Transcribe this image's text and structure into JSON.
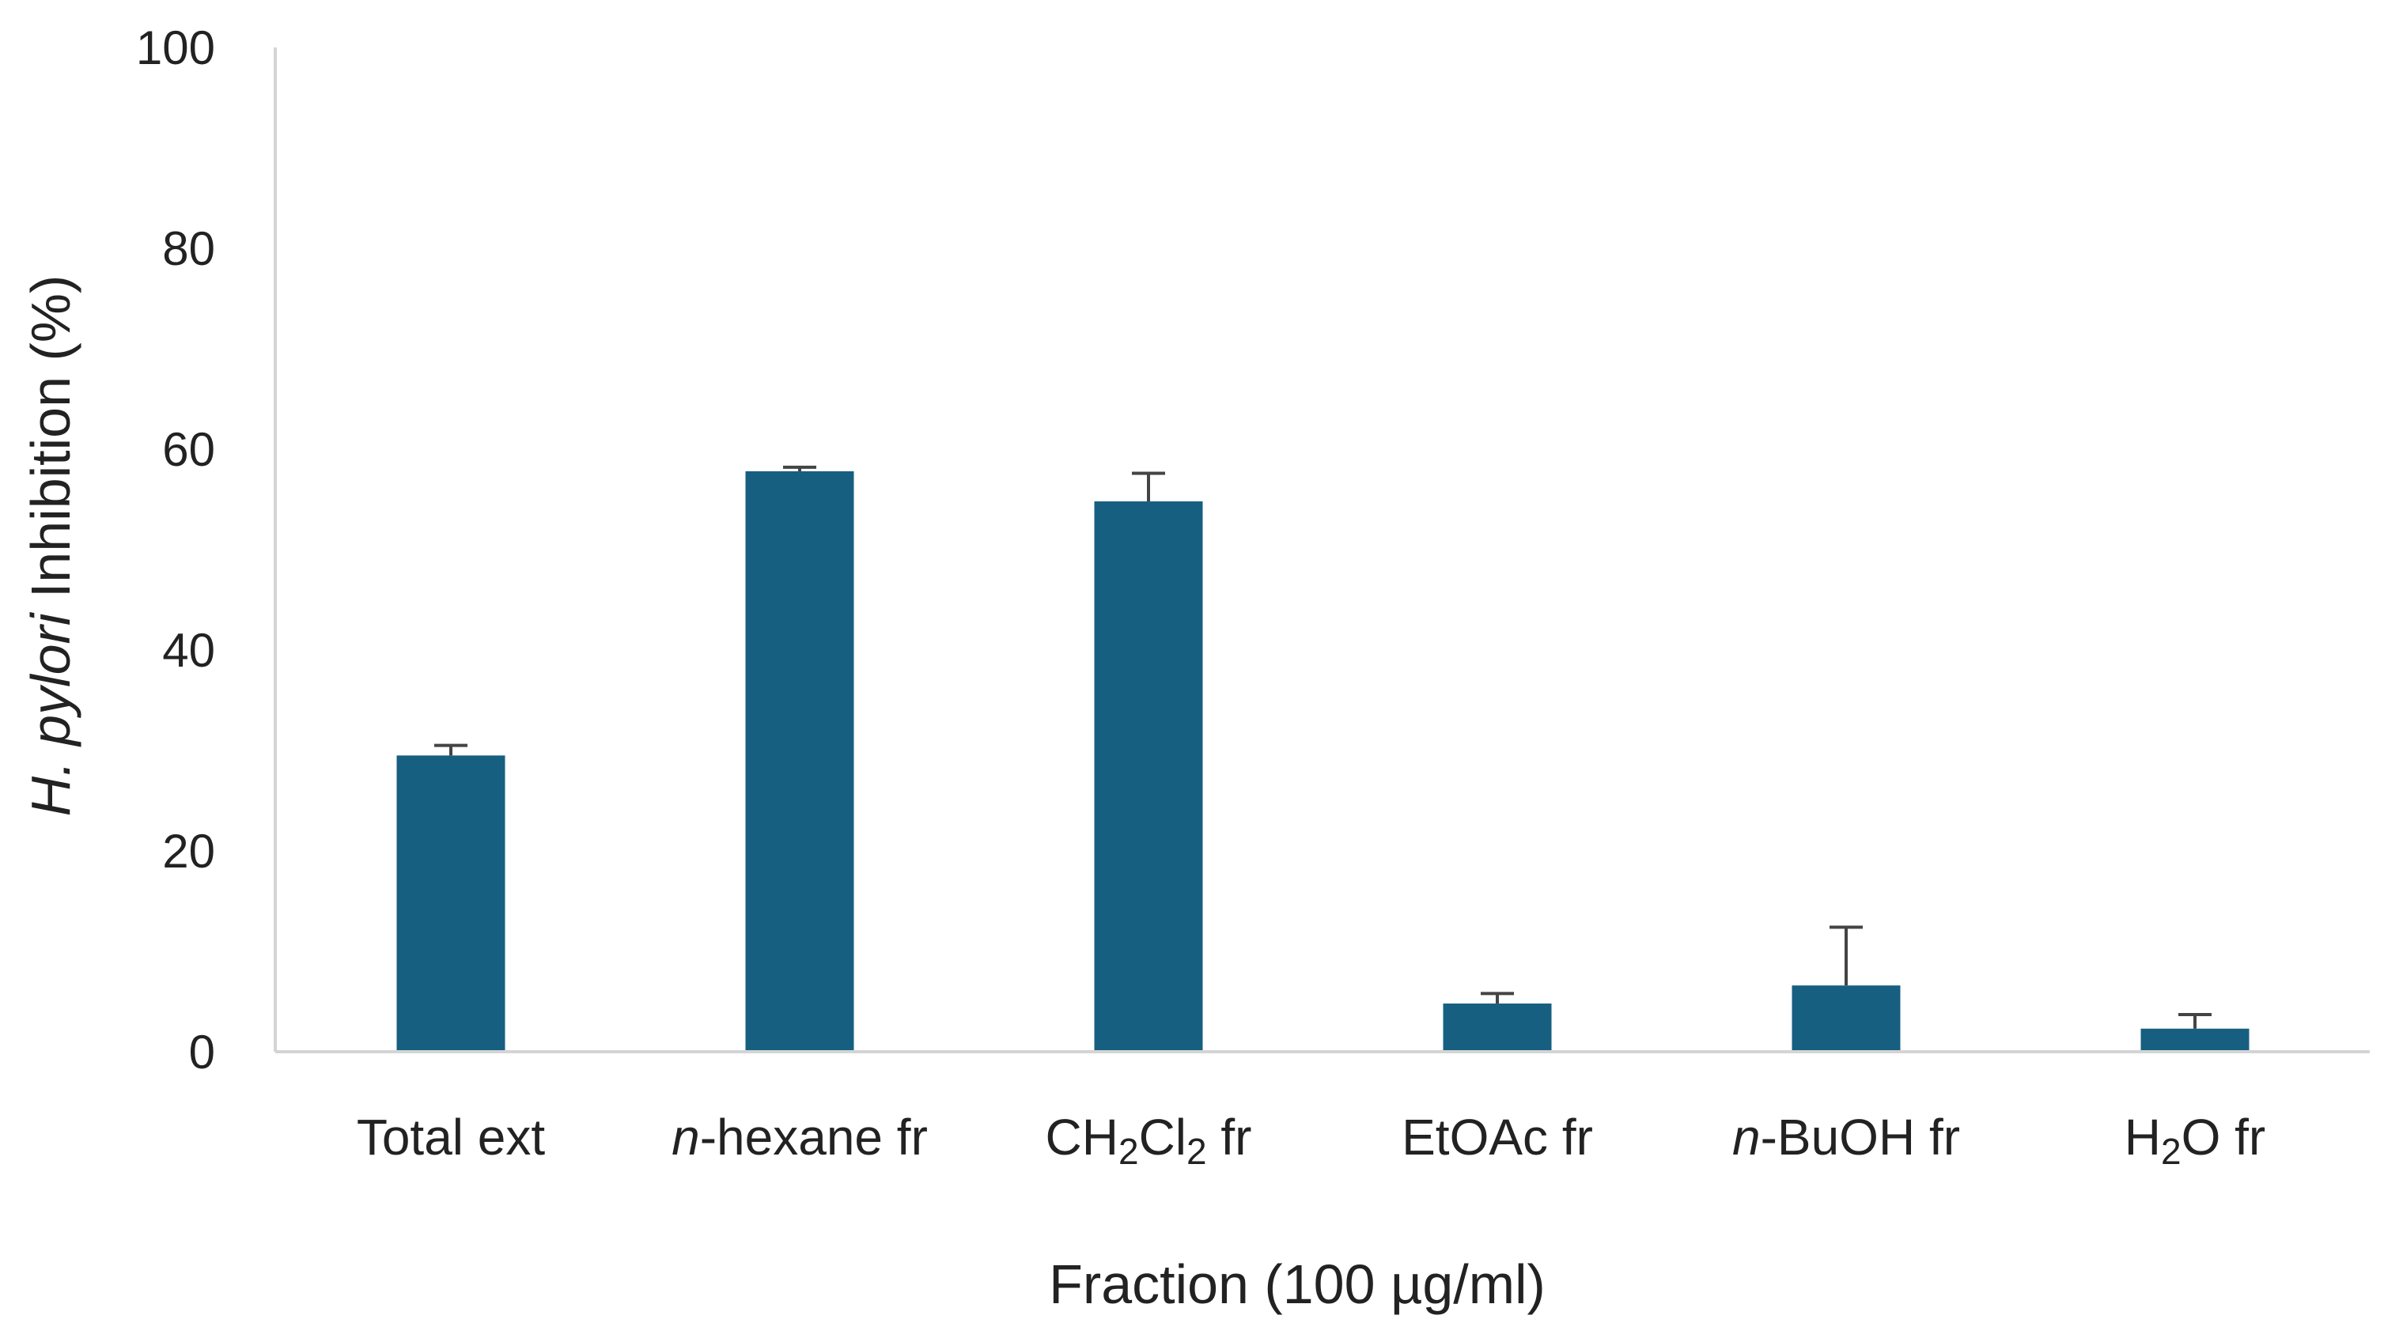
{
  "chart_data": {
    "type": "bar",
    "categories": [
      "Total ext",
      "n-hexane fr",
      "CH2Cl2 fr",
      "EtOAc fr",
      "n-BuOH fr",
      "H2O fr"
    ],
    "category_labels": [
      [
        {
          "t": "Total ext"
        }
      ],
      [
        {
          "t": "n",
          "style": "italic"
        },
        {
          "t": "-hexane fr"
        }
      ],
      [
        {
          "t": "CH"
        },
        {
          "t": "2",
          "style": "sub"
        },
        {
          "t": "Cl"
        },
        {
          "t": "2",
          "style": "sub"
        },
        {
          "t": " fr"
        }
      ],
      [
        {
          "t": "EtOAc fr"
        }
      ],
      [
        {
          "t": "n",
          "style": "italic"
        },
        {
          "t": "-BuOH fr"
        }
      ],
      [
        {
          "t": "H"
        },
        {
          "t": "2",
          "style": "sub"
        },
        {
          "t": "O fr"
        }
      ]
    ],
    "series": [
      {
        "values": [
          29.5,
          57.8,
          54.8,
          4.8,
          6.6,
          2.3
        ],
        "error": [
          1.0,
          0.4,
          2.8,
          1.0,
          5.8,
          1.4
        ],
        "color": "#175f80"
      }
    ],
    "xlabel": "Fraction (100 µg/ml)",
    "ylabel_parts": [
      {
        "t": "H. pylori",
        "style": "italic"
      },
      {
        "t": " Inhibition (%)"
      }
    ],
    "ylim": [
      0,
      100
    ],
    "yticks": [
      0,
      20,
      40,
      60,
      80,
      100
    ],
    "grid": false,
    "legend": "none",
    "axis_color": "#d4d4d4",
    "error_color": "#444444"
  }
}
